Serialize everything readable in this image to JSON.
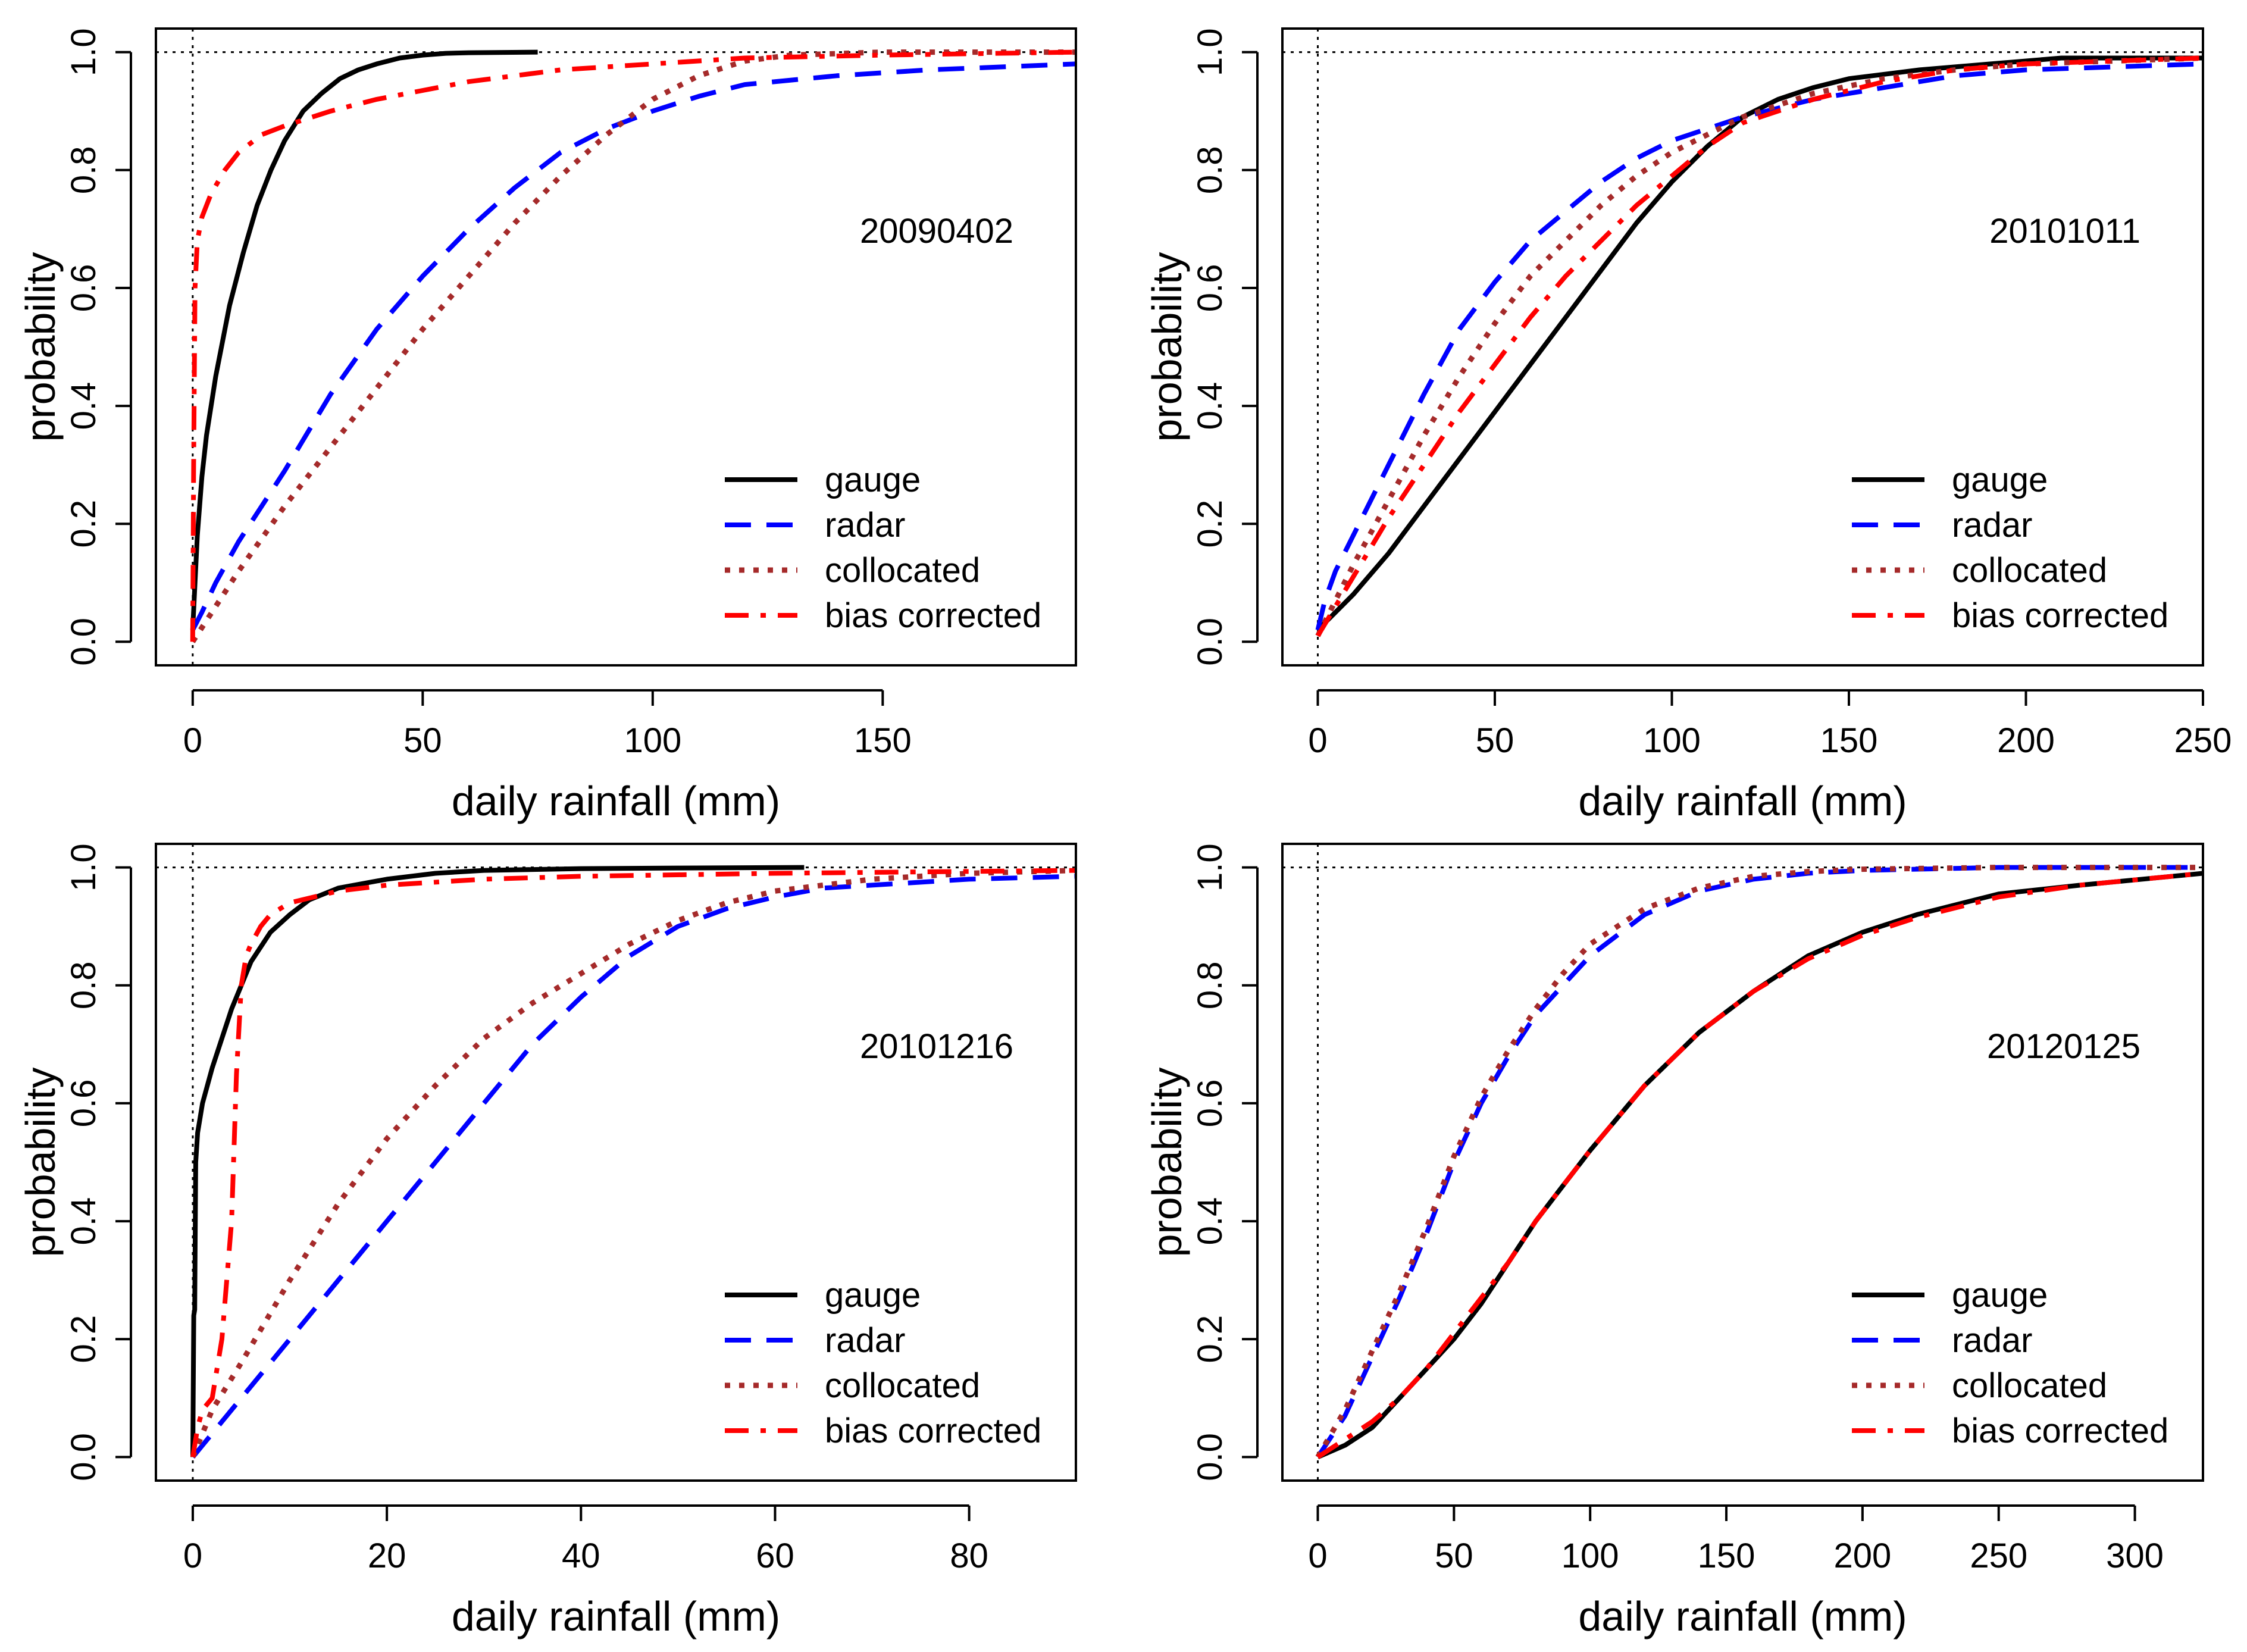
{
  "colors": {
    "gauge": "#000000",
    "radar": "#0000ff",
    "collocated": "#a52a2a",
    "bias_corrected": "#ff0000"
  },
  "legend": {
    "position": "bottom-right",
    "entries": [
      {
        "key": "gauge",
        "label": "gauge",
        "style": "solid"
      },
      {
        "key": "radar",
        "label": "radar",
        "style": "dashed"
      },
      {
        "key": "collocated",
        "label": "collocated",
        "style": "dotted"
      },
      {
        "key": "bias_corrected",
        "label": "bias corrected",
        "style": "dashdot"
      }
    ]
  },
  "chart_data": [
    {
      "type": "line",
      "panel_id": "20090402",
      "xlabel": "daily rainfall (mm)",
      "ylabel": "probability",
      "xlim": [
        -8,
        192
      ],
      "ylim": [
        -0.04,
        1.04
      ],
      "xticks": [
        0,
        50,
        100,
        150
      ],
      "yticks": [
        "0.0",
        "0.2",
        "0.4",
        "0.6",
        "0.8",
        "1.0"
      ],
      "reference_lines": {
        "x": 0,
        "y": 1.0
      },
      "series": [
        {
          "name": "gauge",
          "x": [
            0,
            0.5,
            1,
            2,
            3,
            5,
            8,
            11,
            14,
            17,
            20,
            24,
            28,
            32,
            36,
            40,
            45,
            50,
            55,
            60,
            75
          ],
          "y": [
            0.02,
            0.1,
            0.18,
            0.28,
            0.35,
            0.45,
            0.57,
            0.66,
            0.74,
            0.8,
            0.85,
            0.9,
            0.93,
            0.955,
            0.97,
            0.98,
            0.99,
            0.995,
            0.998,
            0.999,
            1.0
          ]
        },
        {
          "name": "radar",
          "x": [
            0,
            2,
            5,
            10,
            15,
            20,
            30,
            40,
            50,
            60,
            70,
            80,
            90,
            100,
            110,
            120,
            140,
            160,
            192
          ],
          "y": [
            0.02,
            0.05,
            0.1,
            0.17,
            0.23,
            0.29,
            0.42,
            0.53,
            0.62,
            0.7,
            0.77,
            0.83,
            0.87,
            0.9,
            0.925,
            0.945,
            0.96,
            0.97,
            0.98
          ]
        },
        {
          "name": "collocated",
          "x": [
            0,
            5,
            10,
            20,
            30,
            40,
            50,
            60,
            70,
            80,
            90,
            100,
            110,
            120,
            130,
            150,
            192
          ],
          "y": [
            0.0,
            0.06,
            0.12,
            0.23,
            0.33,
            0.43,
            0.53,
            0.62,
            0.71,
            0.79,
            0.86,
            0.92,
            0.96,
            0.985,
            0.995,
            1.0,
            1.0
          ]
        },
        {
          "name": "bias corrected",
          "x": [
            0,
            0.2,
            0.5,
            1,
            2,
            4,
            7,
            10,
            15,
            20,
            30,
            40,
            50,
            60,
            70,
            80,
            100,
            120,
            150,
            192
          ],
          "y": [
            0.0,
            0.3,
            0.6,
            0.68,
            0.72,
            0.76,
            0.8,
            0.83,
            0.86,
            0.875,
            0.9,
            0.92,
            0.935,
            0.95,
            0.96,
            0.97,
            0.98,
            0.99,
            0.995,
            1.0
          ]
        }
      ]
    },
    {
      "type": "line",
      "panel_id": "20101011",
      "xlabel": "daily rainfall (mm)",
      "ylabel": "probability",
      "xlim": [
        -10,
        250
      ],
      "ylim": [
        -0.04,
        1.04
      ],
      "xticks": [
        0,
        50,
        100,
        150,
        200,
        250
      ],
      "yticks": [
        "0.0",
        "0.2",
        "0.4",
        "0.6",
        "0.8",
        "1.0"
      ],
      "reference_lines": {
        "x": 0,
        "y": 1.0
      },
      "series": [
        {
          "name": "gauge",
          "x": [
            0,
            10,
            20,
            30,
            40,
            50,
            60,
            70,
            80,
            90,
            100,
            110,
            120,
            130,
            140,
            150,
            170,
            190,
            210,
            250
          ],
          "y": [
            0.02,
            0.08,
            0.15,
            0.23,
            0.31,
            0.39,
            0.47,
            0.55,
            0.63,
            0.71,
            0.78,
            0.84,
            0.89,
            0.92,
            0.94,
            0.955,
            0.97,
            0.98,
            0.99,
            0.99
          ]
        },
        {
          "name": "radar",
          "x": [
            0,
            2,
            5,
            10,
            20,
            30,
            40,
            50,
            60,
            70,
            80,
            90,
            100,
            110,
            120,
            140,
            160,
            180,
            200,
            250
          ],
          "y": [
            0.02,
            0.07,
            0.12,
            0.18,
            0.3,
            0.42,
            0.53,
            0.61,
            0.68,
            0.73,
            0.78,
            0.82,
            0.85,
            0.87,
            0.89,
            0.92,
            0.94,
            0.96,
            0.97,
            0.98
          ]
        },
        {
          "name": "collocated",
          "x": [
            0,
            5,
            10,
            20,
            30,
            40,
            50,
            60,
            70,
            80,
            90,
            100,
            110,
            120,
            140,
            160,
            180,
            200,
            250
          ],
          "y": [
            0.01,
            0.07,
            0.13,
            0.24,
            0.35,
            0.45,
            0.54,
            0.62,
            0.68,
            0.74,
            0.79,
            0.83,
            0.86,
            0.89,
            0.93,
            0.955,
            0.97,
            0.98,
            0.99
          ]
        },
        {
          "name": "bias corrected",
          "x": [
            0,
            5,
            10,
            20,
            30,
            40,
            50,
            60,
            70,
            80,
            90,
            100,
            110,
            120,
            140,
            160,
            180,
            200,
            250
          ],
          "y": [
            0.01,
            0.06,
            0.11,
            0.21,
            0.3,
            0.39,
            0.47,
            0.55,
            0.62,
            0.68,
            0.74,
            0.79,
            0.84,
            0.88,
            0.92,
            0.95,
            0.97,
            0.98,
            0.99
          ]
        }
      ]
    },
    {
      "type": "line",
      "panel_id": "20101216",
      "xlabel": "daily rainfall (mm)",
      "ylabel": "probability",
      "xlim": [
        -3.8,
        91
      ],
      "ylim": [
        -0.04,
        1.04
      ],
      "xticks": [
        0,
        20,
        40,
        60,
        80
      ],
      "yticks": [
        "0.0",
        "0.2",
        "0.4",
        "0.6",
        "0.8",
        "1.0"
      ],
      "reference_lines": {
        "x": 0,
        "y": 1.0
      },
      "series": [
        {
          "name": "gauge",
          "x": [
            0,
            0.1,
            0.2,
            0.3,
            0.5,
            1,
            2,
            3,
            4,
            5,
            6,
            8,
            10,
            12,
            15,
            20,
            25,
            30,
            40,
            50,
            63
          ],
          "y": [
            0.0,
            0.24,
            0.25,
            0.5,
            0.55,
            0.6,
            0.66,
            0.71,
            0.76,
            0.8,
            0.84,
            0.89,
            0.92,
            0.945,
            0.965,
            0.98,
            0.99,
            0.995,
            0.998,
            0.999,
            1.0
          ]
        },
        {
          "name": "radar",
          "x": [
            0,
            5,
            10,
            15,
            20,
            25,
            30,
            35,
            40,
            45,
            50,
            55,
            60,
            65,
            70,
            80,
            91
          ],
          "y": [
            0.0,
            0.1,
            0.2,
            0.3,
            0.4,
            0.5,
            0.6,
            0.7,
            0.78,
            0.85,
            0.9,
            0.93,
            0.95,
            0.965,
            0.97,
            0.98,
            0.985
          ]
        },
        {
          "name": "collocated",
          "x": [
            0,
            2,
            5,
            10,
            15,
            20,
            25,
            30,
            35,
            40,
            45,
            50,
            55,
            60,
            70,
            80,
            91
          ],
          "y": [
            0.0,
            0.08,
            0.16,
            0.3,
            0.43,
            0.54,
            0.63,
            0.71,
            0.77,
            0.82,
            0.87,
            0.91,
            0.94,
            0.96,
            0.98,
            0.99,
            0.995
          ]
        },
        {
          "name": "bias corrected",
          "x": [
            0,
            0.5,
            1,
            2,
            3,
            4,
            4.5,
            5,
            5.5,
            6,
            7,
            8,
            10,
            15,
            20,
            30,
            40,
            60,
            91
          ],
          "y": [
            0.0,
            0.05,
            0.08,
            0.1,
            0.2,
            0.4,
            0.65,
            0.8,
            0.85,
            0.87,
            0.9,
            0.92,
            0.94,
            0.96,
            0.97,
            0.98,
            0.985,
            0.99,
            0.995
          ]
        }
      ]
    },
    {
      "type": "line",
      "panel_id": "20120125",
      "xlabel": "daily rainfall (mm)",
      "ylabel": "probability",
      "xlim": [
        -13,
        325
      ],
      "ylim": [
        -0.04,
        1.04
      ],
      "xticks": [
        0,
        50,
        100,
        150,
        200,
        250,
        300
      ],
      "yticks": [
        "0.0",
        "0.2",
        "0.4",
        "0.6",
        "0.8",
        "1.0"
      ],
      "reference_lines": {
        "x": 0,
        "y": 1.0
      },
      "series": [
        {
          "name": "gauge",
          "x": [
            0,
            10,
            20,
            30,
            40,
            50,
            60,
            70,
            80,
            90,
            100,
            120,
            140,
            160,
            180,
            200,
            220,
            250,
            280,
            325
          ],
          "y": [
            0.0,
            0.02,
            0.05,
            0.1,
            0.15,
            0.2,
            0.26,
            0.33,
            0.4,
            0.46,
            0.52,
            0.63,
            0.72,
            0.79,
            0.85,
            0.89,
            0.92,
            0.955,
            0.97,
            0.99
          ]
        },
        {
          "name": "radar",
          "x": [
            0,
            10,
            20,
            30,
            40,
            50,
            60,
            70,
            80,
            90,
            100,
            120,
            140,
            160,
            180,
            200,
            250,
            325
          ],
          "y": [
            0.0,
            0.07,
            0.17,
            0.27,
            0.38,
            0.5,
            0.6,
            0.68,
            0.75,
            0.8,
            0.85,
            0.92,
            0.96,
            0.98,
            0.99,
            0.995,
            1.0,
            1.0
          ]
        },
        {
          "name": "collocated",
          "x": [
            0,
            10,
            20,
            30,
            40,
            50,
            60,
            70,
            80,
            90,
            100,
            120,
            140,
            160,
            180,
            200,
            250,
            325
          ],
          "y": [
            0.0,
            0.08,
            0.18,
            0.28,
            0.39,
            0.51,
            0.61,
            0.69,
            0.76,
            0.82,
            0.87,
            0.93,
            0.965,
            0.985,
            0.993,
            0.997,
            1.0,
            1.0
          ]
        },
        {
          "name": "bias corrected",
          "x": [
            0,
            10,
            20,
            30,
            40,
            50,
            60,
            70,
            80,
            90,
            100,
            120,
            140,
            160,
            180,
            200,
            220,
            250,
            280,
            325
          ],
          "y": [
            0.0,
            0.03,
            0.06,
            0.1,
            0.15,
            0.21,
            0.27,
            0.33,
            0.4,
            0.46,
            0.52,
            0.63,
            0.72,
            0.79,
            0.845,
            0.885,
            0.915,
            0.95,
            0.97,
            0.99
          ]
        }
      ]
    }
  ]
}
